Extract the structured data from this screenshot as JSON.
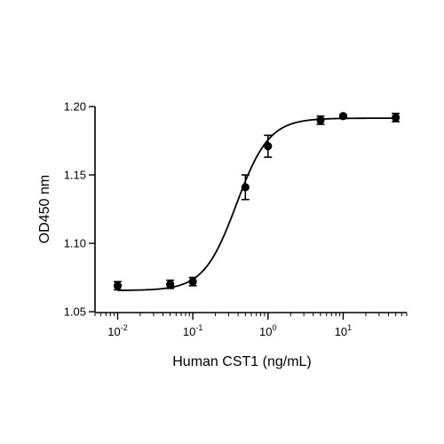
{
  "chart_data": {
    "type": "scatter",
    "xlabel": "Human CST1 (ng/mL)",
    "ylabel": "OD450 nm",
    "xscale": "log",
    "xlim": [
      0.005,
      70
    ],
    "ylim": [
      1.05,
      1.2
    ],
    "x_ticks": [
      {
        "value": 0.01,
        "base": "10",
        "exp": "-2"
      },
      {
        "value": 0.1,
        "base": "10",
        "exp": "-1"
      },
      {
        "value": 1,
        "base": "10",
        "exp": "0"
      },
      {
        "value": 10,
        "base": "10",
        "exp": "1"
      }
    ],
    "y_ticks": [
      {
        "value": 1.05,
        "label": "1.05"
      },
      {
        "value": 1.1,
        "label": "1.10"
      },
      {
        "value": 1.15,
        "label": "1.15"
      },
      {
        "value": 1.2,
        "label": "1.20"
      }
    ],
    "grid": false,
    "legend": "none",
    "series": [
      {
        "points": [
          {
            "x": 0.01,
            "y": 1.069,
            "err": 0.003
          },
          {
            "x": 0.05,
            "y": 1.07,
            "err": 0.003
          },
          {
            "x": 0.1,
            "y": 1.072,
            "err": 0.003
          },
          {
            "x": 0.5,
            "y": 1.141,
            "err": 0.009
          },
          {
            "x": 1,
            "y": 1.171,
            "err": 0.008
          },
          {
            "x": 5,
            "y": 1.19,
            "err": 0.003
          },
          {
            "x": 10,
            "y": 1.193,
            "err": 0.001
          },
          {
            "x": 50,
            "y": 1.192,
            "err": 0.003
          }
        ]
      }
    ],
    "fit": {
      "model": "4PL",
      "bottom": 1.0655,
      "top": 1.1915,
      "ec50": 0.38,
      "hill": 2.0
    }
  }
}
